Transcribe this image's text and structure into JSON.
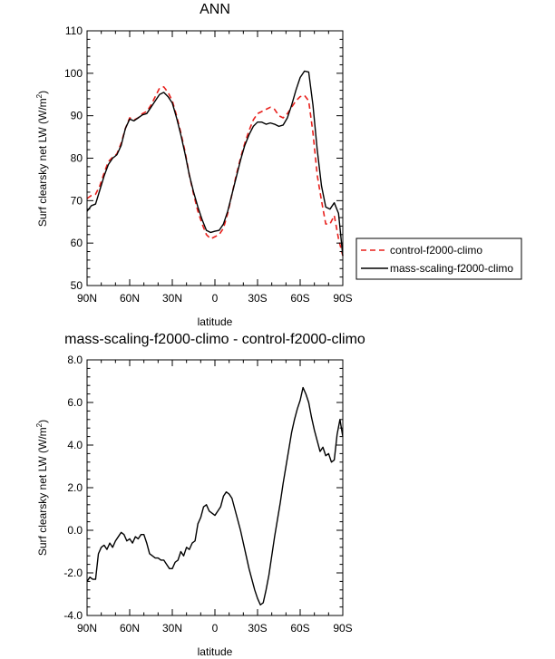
{
  "chart_data": [
    {
      "type": "line",
      "title": "ANN",
      "xlabel": "latitude",
      "ylabel": "Surf clearsky net LW (W/m²)",
      "ylabel_main": "Surf clearsky net LW (W/m",
      "ylabel_sup": "2",
      "ylabel_tail": ")",
      "xlim": [
        90,
        -90
      ],
      "ylim": [
        50,
        110
      ],
      "x_ticks": [
        90,
        60,
        30,
        0,
        -30,
        -60,
        -90
      ],
      "x_tick_labels": [
        "90N",
        "60N",
        "30N",
        "0",
        "30S",
        "60S",
        "90S"
      ],
      "y_ticks": [
        50,
        60,
        70,
        80,
        90,
        100,
        110
      ],
      "y_tick_labels": [
        "50",
        "60",
        "70",
        "80",
        "90",
        "100",
        "110"
      ],
      "grid": false,
      "legend_position": "right",
      "series": [
        {
          "name": "control-f2000-climo",
          "color": "#e8201c",
          "dash": "dashed",
          "x": [
            90,
            87,
            84,
            81,
            78,
            75,
            72,
            69,
            66,
            63,
            60,
            57,
            54,
            51,
            48,
            45,
            42,
            39,
            36,
            33,
            30,
            27,
            24,
            21,
            18,
            15,
            12,
            9,
            6,
            3,
            0,
            -3,
            -6,
            -9,
            -12,
            -15,
            -18,
            -21,
            -24,
            -27,
            -30,
            -33,
            -36,
            -39,
            -42,
            -45,
            -48,
            -51,
            -54,
            -57,
            -60,
            -63,
            -66,
            -69,
            -72,
            -75,
            -78,
            -81,
            -84,
            -87,
            -90
          ],
          "y": [
            70.5,
            71.2,
            71.5,
            73.5,
            76.5,
            79.2,
            80.2,
            81.0,
            83.5,
            87.0,
            89.5,
            89.0,
            89.5,
            90.5,
            91.0,
            92.5,
            94.5,
            96.5,
            96.8,
            95.5,
            93.5,
            90.0,
            86.0,
            81.5,
            76.0,
            71.5,
            67.5,
            64.5,
            62.0,
            61.0,
            61.5,
            62.0,
            63.5,
            67.0,
            71.5,
            76.0,
            80.0,
            83.5,
            86.5,
            89.0,
            90.5,
            91.0,
            91.5,
            92.0,
            91.5,
            90.0,
            89.5,
            90.5,
            92.0,
            93.5,
            94.5,
            94.8,
            93.5,
            86.0,
            76.0,
            70.0,
            64.5,
            64.5,
            66.5,
            61.0,
            57.0
          ]
        },
        {
          "name": "mass-scaling-f2000-climo",
          "color": "#000000",
          "dash": "solid",
          "x": [
            90,
            87,
            84,
            81,
            78,
            75,
            72,
            69,
            66,
            63,
            60,
            57,
            54,
            51,
            48,
            45,
            42,
            39,
            36,
            33,
            30,
            27,
            24,
            21,
            18,
            15,
            12,
            9,
            6,
            3,
            0,
            -3,
            -6,
            -9,
            -12,
            -15,
            -18,
            -21,
            -24,
            -27,
            -30,
            -33,
            -36,
            -39,
            -42,
            -45,
            -48,
            -51,
            -54,
            -57,
            -60,
            -63,
            -66,
            -69,
            -72,
            -75,
            -78,
            -81,
            -84,
            -87,
            -90
          ],
          "y": [
            67.5,
            68.8,
            69.2,
            72.5,
            75.8,
            78.5,
            80.0,
            80.8,
            83.0,
            87.0,
            89.2,
            88.8,
            89.5,
            90.2,
            90.5,
            92.0,
            93.5,
            95.0,
            95.5,
            94.5,
            93.0,
            89.5,
            85.5,
            81.0,
            76.0,
            72.0,
            68.5,
            65.5,
            63.0,
            62.5,
            62.8,
            63.0,
            64.5,
            67.5,
            71.5,
            75.5,
            79.5,
            83.0,
            85.5,
            87.5,
            88.5,
            88.5,
            88.0,
            88.3,
            88.0,
            87.5,
            87.8,
            89.5,
            92.5,
            96.0,
            99.0,
            100.5,
            100.3,
            92.5,
            82.0,
            73.5,
            68.5,
            68.0,
            69.5,
            67.0,
            57.0
          ]
        }
      ]
    },
    {
      "type": "line",
      "title": "mass-scaling-f2000-climo - control-f2000-climo",
      "xlabel": "latitude",
      "ylabel": "Surf clearsky net LW (W/m²)",
      "ylabel_main": "Surf clearsky net LW (W/m",
      "ylabel_sup": "2",
      "ylabel_tail": ")",
      "xlim": [
        90,
        -90
      ],
      "ylim": [
        -4.0,
        8.0
      ],
      "x_ticks": [
        90,
        60,
        30,
        0,
        -30,
        -60,
        -90
      ],
      "x_tick_labels": [
        "90N",
        "60N",
        "30N",
        "0",
        "30S",
        "60S",
        "90S"
      ],
      "y_ticks": [
        -4.0,
        -2.0,
        0.0,
        2.0,
        4.0,
        6.0,
        8.0
      ],
      "y_tick_labels": [
        "-4.0",
        "-2.0",
        "0.0",
        "2.0",
        "4.0",
        "6.0",
        "8.0"
      ],
      "grid": false,
      "series": [
        {
          "name": "",
          "color": "#000000",
          "dash": "solid",
          "x": [
            90,
            88,
            86,
            84,
            82,
            80,
            78,
            76,
            74,
            72,
            70,
            68,
            66,
            64,
            62,
            60,
            58,
            56,
            54,
            52,
            50,
            48,
            46,
            44,
            42,
            40,
            38,
            36,
            34,
            32,
            30,
            28,
            26,
            24,
            22,
            20,
            18,
            16,
            14,
            12,
            10,
            8,
            6,
            4,
            2,
            0,
            -2,
            -4,
            -6,
            -8,
            -10,
            -12,
            -14,
            -16,
            -18,
            -20,
            -22,
            -24,
            -26,
            -28,
            -30,
            -32,
            -34,
            -36,
            -38,
            -40,
            -42,
            -44,
            -46,
            -48,
            -50,
            -52,
            -54,
            -56,
            -58,
            -60,
            -62,
            -64,
            -66,
            -68,
            -70,
            -72,
            -74,
            -76,
            -78,
            -80,
            -82,
            -84,
            -86,
            -88,
            -90
          ],
          "y": [
            -2.4,
            -2.2,
            -2.3,
            -2.3,
            -1.1,
            -0.8,
            -0.7,
            -0.9,
            -0.6,
            -0.8,
            -0.5,
            -0.3,
            -0.1,
            -0.2,
            -0.5,
            -0.4,
            -0.6,
            -0.3,
            -0.4,
            -0.2,
            -0.2,
            -0.6,
            -1.1,
            -1.2,
            -1.3,
            -1.3,
            -1.4,
            -1.4,
            -1.6,
            -1.8,
            -1.8,
            -1.5,
            -1.4,
            -1.0,
            -1.2,
            -0.8,
            -0.9,
            -0.6,
            -0.5,
            0.3,
            0.6,
            1.1,
            1.2,
            0.9,
            0.8,
            0.7,
            0.9,
            1.1,
            1.6,
            1.8,
            1.7,
            1.5,
            1.0,
            0.5,
            0.0,
            -0.6,
            -1.2,
            -1.8,
            -2.3,
            -2.8,
            -3.2,
            -3.5,
            -3.4,
            -2.8,
            -2.1,
            -1.2,
            -0.3,
            0.5,
            1.3,
            2.2,
            3.0,
            3.8,
            4.6,
            5.2,
            5.7,
            6.1,
            6.7,
            6.4,
            6.0,
            5.3,
            4.7,
            4.2,
            3.7,
            3.9,
            3.5,
            3.6,
            3.2,
            3.3,
            4.5,
            5.2,
            4.4
          ]
        }
      ]
    }
  ]
}
